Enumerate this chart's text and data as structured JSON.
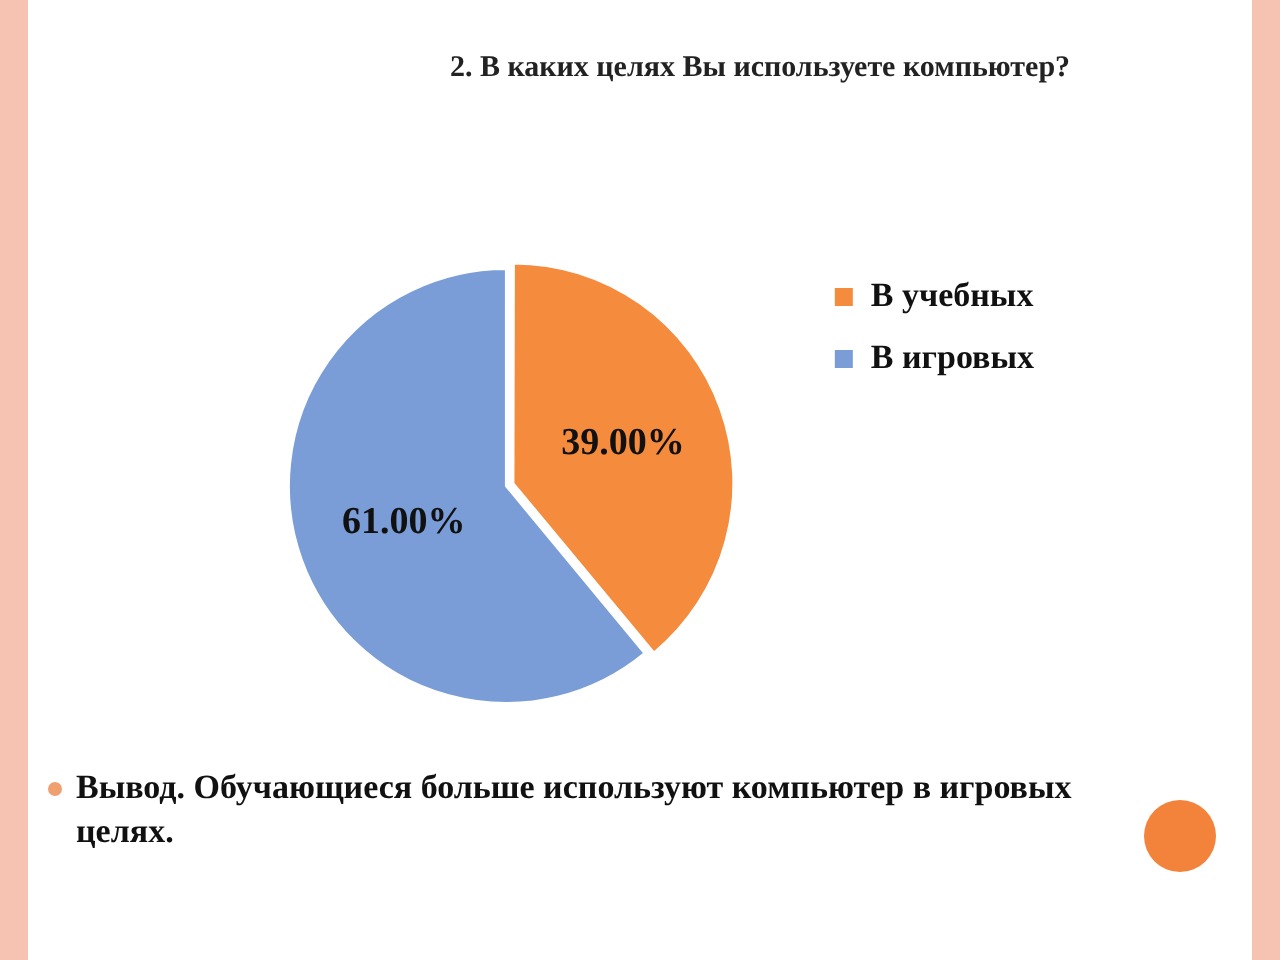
{
  "chart_data": {
    "type": "pie",
    "title": "2. В каких целях Вы используете компьютер?",
    "categories": [
      "В учебных",
      "В игровых"
    ],
    "values": [
      39,
      61
    ],
    "colors": [
      "#f58b3c",
      "#7a9dd8"
    ],
    "value_labels": [
      "39.00%",
      "61.00%"
    ],
    "legend": "right",
    "annotations": [
      "Вывод. Обучающиеся больше используют компьютер в игровых целях."
    ]
  }
}
